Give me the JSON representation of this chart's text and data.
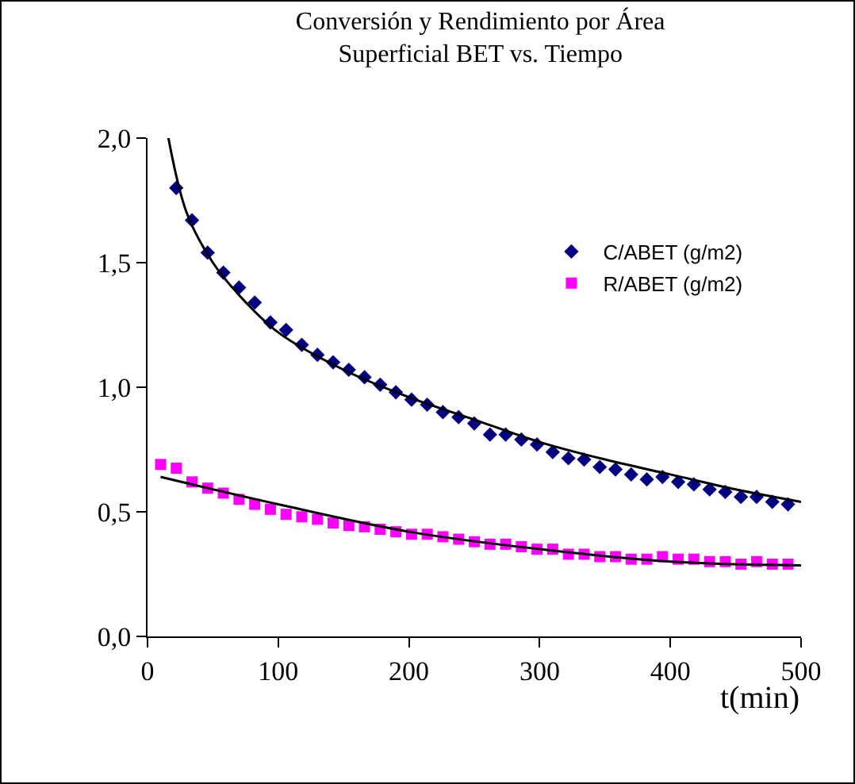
{
  "chart_data": {
    "type": "scatter",
    "title": "Conversión y Rendimiento por Área\nSuperficial BET vs. Tiempo",
    "xlabel": "t(min)",
    "xlim": [
      0,
      500
    ],
    "xticks": [
      0,
      100,
      200,
      300,
      400,
      500
    ],
    "ylim": [
      0,
      2
    ],
    "yticks": [
      {
        "value": 0,
        "label": "0,0"
      },
      {
        "value": 0.5,
        "label": "0,5"
      },
      {
        "value": 1,
        "label": "1,0"
      },
      {
        "value": 1.5,
        "label": "1,5"
      },
      {
        "value": 2,
        "label": "2,0"
      }
    ],
    "grid": false,
    "legend": "right",
    "series": [
      {
        "name": "C/ABET (g/m2)",
        "color": "#000080",
        "marker": "diamond",
        "x": [
          22,
          34,
          46,
          58,
          70,
          82,
          94,
          106,
          118,
          130,
          142,
          154,
          166,
          178,
          190,
          202,
          214,
          226,
          238,
          250,
          262,
          274,
          286,
          298,
          310,
          322,
          334,
          346,
          358,
          370,
          382,
          394,
          406,
          418,
          430,
          442,
          454,
          466,
          478,
          490
        ],
        "values": [
          1.8,
          1.67,
          1.54,
          1.46,
          1.4,
          1.34,
          1.26,
          1.23,
          1.17,
          1.13,
          1.1,
          1.07,
          1.04,
          1.01,
          0.98,
          0.95,
          0.93,
          0.9,
          0.88,
          0.855,
          0.81,
          0.81,
          0.79,
          0.77,
          0.74,
          0.715,
          0.71,
          0.68,
          0.67,
          0.65,
          0.63,
          0.64,
          0.62,
          0.61,
          0.59,
          0.58,
          0.56,
          0.56,
          0.54,
          0.53
        ]
      },
      {
        "name": "R/ABET (g/m2)",
        "color": "#ff00ff",
        "marker": "square",
        "x": [
          10,
          22,
          34,
          46,
          58,
          70,
          82,
          94,
          106,
          118,
          130,
          142,
          154,
          166,
          178,
          190,
          202,
          214,
          226,
          238,
          250,
          262,
          274,
          286,
          298,
          310,
          322,
          334,
          346,
          358,
          370,
          382,
          394,
          406,
          418,
          430,
          442,
          454,
          466,
          478,
          490
        ],
        "values": [
          0.69,
          0.675,
          0.62,
          0.595,
          0.575,
          0.55,
          0.53,
          0.51,
          0.49,
          0.48,
          0.47,
          0.455,
          0.445,
          0.44,
          0.43,
          0.42,
          0.41,
          0.41,
          0.4,
          0.39,
          0.38,
          0.37,
          0.37,
          0.36,
          0.35,
          0.35,
          0.33,
          0.33,
          0.32,
          0.32,
          0.31,
          0.31,
          0.32,
          0.31,
          0.31,
          0.3,
          0.3,
          0.29,
          0.3,
          0.29,
          0.29
        ]
      },
      {
        "type": "line",
        "color": "#000000",
        "marker": "none",
        "x": [
          16,
          30,
          50,
          70,
          100,
          150,
          200,
          250,
          300,
          350,
          400,
          450,
          500
        ],
        "values": [
          2.0,
          1.7,
          1.5,
          1.37,
          1.22,
          1.07,
          0.96,
          0.87,
          0.78,
          0.71,
          0.65,
          0.59,
          0.54
        ]
      },
      {
        "type": "line",
        "color": "#000000",
        "marker": "none",
        "x": [
          10,
          100,
          200,
          300,
          400,
          500
        ],
        "values": [
          0.64,
          0.53,
          0.42,
          0.35,
          0.3,
          0.285
        ]
      }
    ]
  }
}
